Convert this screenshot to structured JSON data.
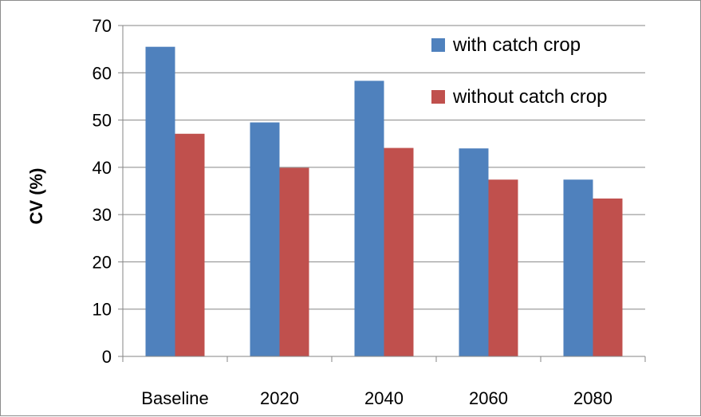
{
  "chart_data": {
    "type": "bar",
    "categories": [
      "Baseline",
      "2020",
      "2040",
      "2060",
      "2080"
    ],
    "series": [
      {
        "name": "with catch crop",
        "color": "#4f81bd",
        "values": [
          65.5,
          49.5,
          58.3,
          44.0,
          37.4
        ]
      },
      {
        "name": "without catch crop",
        "color": "#c0504d",
        "values": [
          47.1,
          39.9,
          44.1,
          37.4,
          33.4
        ]
      }
    ],
    "title": "",
    "xlabel": "",
    "ylabel": "CV (%)",
    "ylim": [
      0,
      70
    ],
    "yticks": [
      0,
      10,
      20,
      30,
      40,
      50,
      60,
      70
    ],
    "grid": "horizontal",
    "legend_position": "top-right"
  }
}
